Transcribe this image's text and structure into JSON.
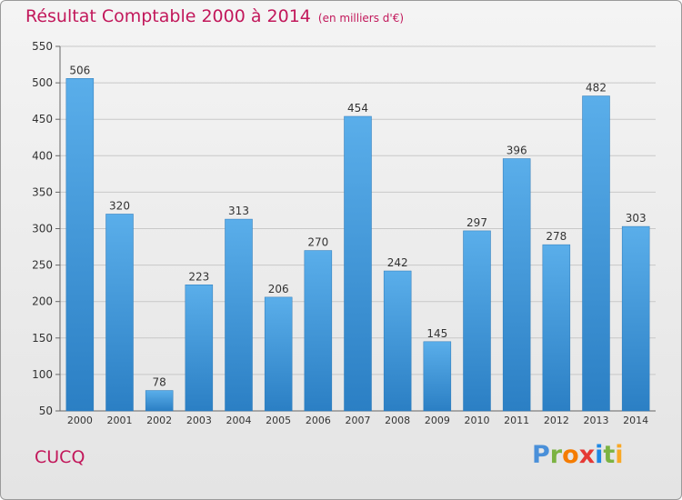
{
  "title": "Résultat Comptable 2000 à 2014",
  "subtitle": "(en milliers d'€)",
  "place": "CUCQ",
  "logo": {
    "letters": [
      "P",
      "r",
      "o",
      "x",
      "i",
      "t",
      "i"
    ],
    "colors": [
      "#4a90d9",
      "#7cb342",
      "#f57c00",
      "#e53935",
      "#1e88e5",
      "#7cb342",
      "#f9a825"
    ]
  },
  "chart_data": {
    "type": "bar",
    "categories": [
      "2000",
      "2001",
      "2002",
      "2003",
      "2004",
      "2005",
      "2006",
      "2007",
      "2008",
      "2009",
      "2010",
      "2011",
      "2012",
      "2013",
      "2014"
    ],
    "values": [
      506,
      320,
      78,
      223,
      313,
      206,
      270,
      454,
      242,
      145,
      297,
      396,
      278,
      482,
      303
    ],
    "title": "Résultat Comptable 2000 à 2014",
    "ylim": [
      50,
      550
    ],
    "yticks": [
      50,
      100,
      150,
      200,
      250,
      300,
      350,
      400,
      450,
      500,
      550
    ],
    "grid": true,
    "bar_color": "#3f97de"
  }
}
